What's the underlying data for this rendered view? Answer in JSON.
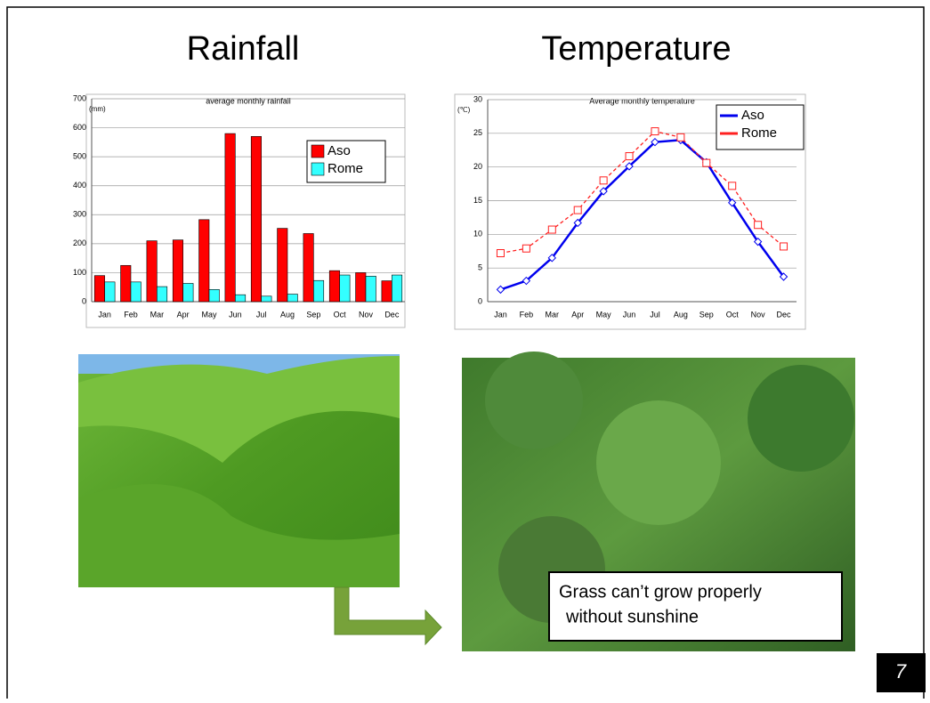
{
  "slide": {
    "headings": [
      "Rainfall",
      "Temperature"
    ],
    "caption": [
      "Grass can’t grow properly",
      "without sunshine"
    ],
    "page_number": 7
  },
  "chart_data": [
    {
      "type": "bar",
      "title": "average monthly rainfall",
      "y_unit": "(mm)",
      "categories": [
        "Jan",
        "Feb",
        "Mar",
        "Apr",
        "May",
        "Jun",
        "Jul",
        "Aug",
        "Sep",
        "Oct",
        "Nov",
        "Dec"
      ],
      "series": [
        {
          "name": "Aso",
          "color": "#ff0000",
          "values": [
            90,
            125,
            210,
            213,
            283,
            580,
            570,
            253,
            235,
            107,
            100,
            72
          ]
        },
        {
          "name": "Rome",
          "color": "#33ffff",
          "values": [
            68,
            68,
            52,
            63,
            42,
            24,
            19,
            26,
            73,
            92,
            88,
            92
          ]
        }
      ],
      "ylim": [
        0,
        700
      ],
      "yticks": [
        0,
        100,
        200,
        300,
        400,
        500,
        600,
        700
      ],
      "grid": true,
      "legend": "upper right"
    },
    {
      "type": "line",
      "title": "Average monthly temperature",
      "y_unit": "(℃)",
      "categories": [
        "Jan",
        "Feb",
        "Mar",
        "Apr",
        "May",
        "Jun",
        "Jul",
        "Aug",
        "Sep",
        "Oct",
        "Nov",
        "Dec"
      ],
      "series": [
        {
          "name": "Aso",
          "color": "#0000ee",
          "marker": "diamond",
          "style": "solid",
          "values": [
            1.8,
            3.1,
            6.5,
            11.7,
            16.4,
            20.1,
            23.7,
            24.0,
            20.7,
            14.7,
            8.9,
            3.7
          ]
        },
        {
          "name": "Rome",
          "color": "#ff2020",
          "marker": "square",
          "style": "dashed",
          "values": [
            7.2,
            7.9,
            10.7,
            13.6,
            18.0,
            21.6,
            25.3,
            24.4,
            20.6,
            17.2,
            11.4,
            8.2
          ]
        }
      ],
      "ylim": [
        0,
        30
      ],
      "yticks": [
        0,
        5,
        10,
        15,
        20,
        25,
        30
      ],
      "grid": true,
      "legend": "upper right"
    }
  ]
}
